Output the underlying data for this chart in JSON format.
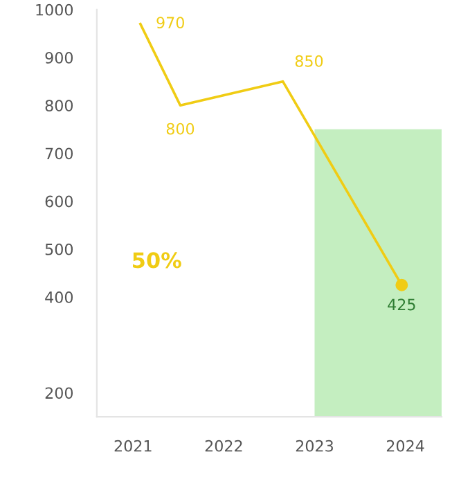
{
  "chart_data": {
    "type": "line",
    "xlim": [
      2020.6,
      2024.4
    ],
    "xticks": [
      2021,
      2022,
      2023,
      2024
    ],
    "ylim": [
      150,
      1000
    ],
    "yticks": [
      200,
      400,
      500,
      600,
      700,
      800,
      900,
      1000
    ],
    "grid": false,
    "marker": "none",
    "series": [
      {
        "type": "bar",
        "x": [
          2023.7
        ],
        "base": [
          150
        ],
        "values": [
          600
        ],
        "color": "#c4eec0"
      },
      {
        "x": [
          2021.08,
          2021.52,
          2022.65,
          2023.96
        ],
        "values": [
          970,
          800,
          850,
          425
        ],
        "color": "#f0cc14",
        "value_labels": [
          "970",
          "800",
          "850",
          "425"
        ]
      },
      {
        "type": "scatter",
        "marker": "circle",
        "x": [
          2023.96
        ],
        "values": [
          425
        ],
        "color": "#f0cc14"
      }
    ],
    "annotations": [
      "50%"
    ]
  }
}
